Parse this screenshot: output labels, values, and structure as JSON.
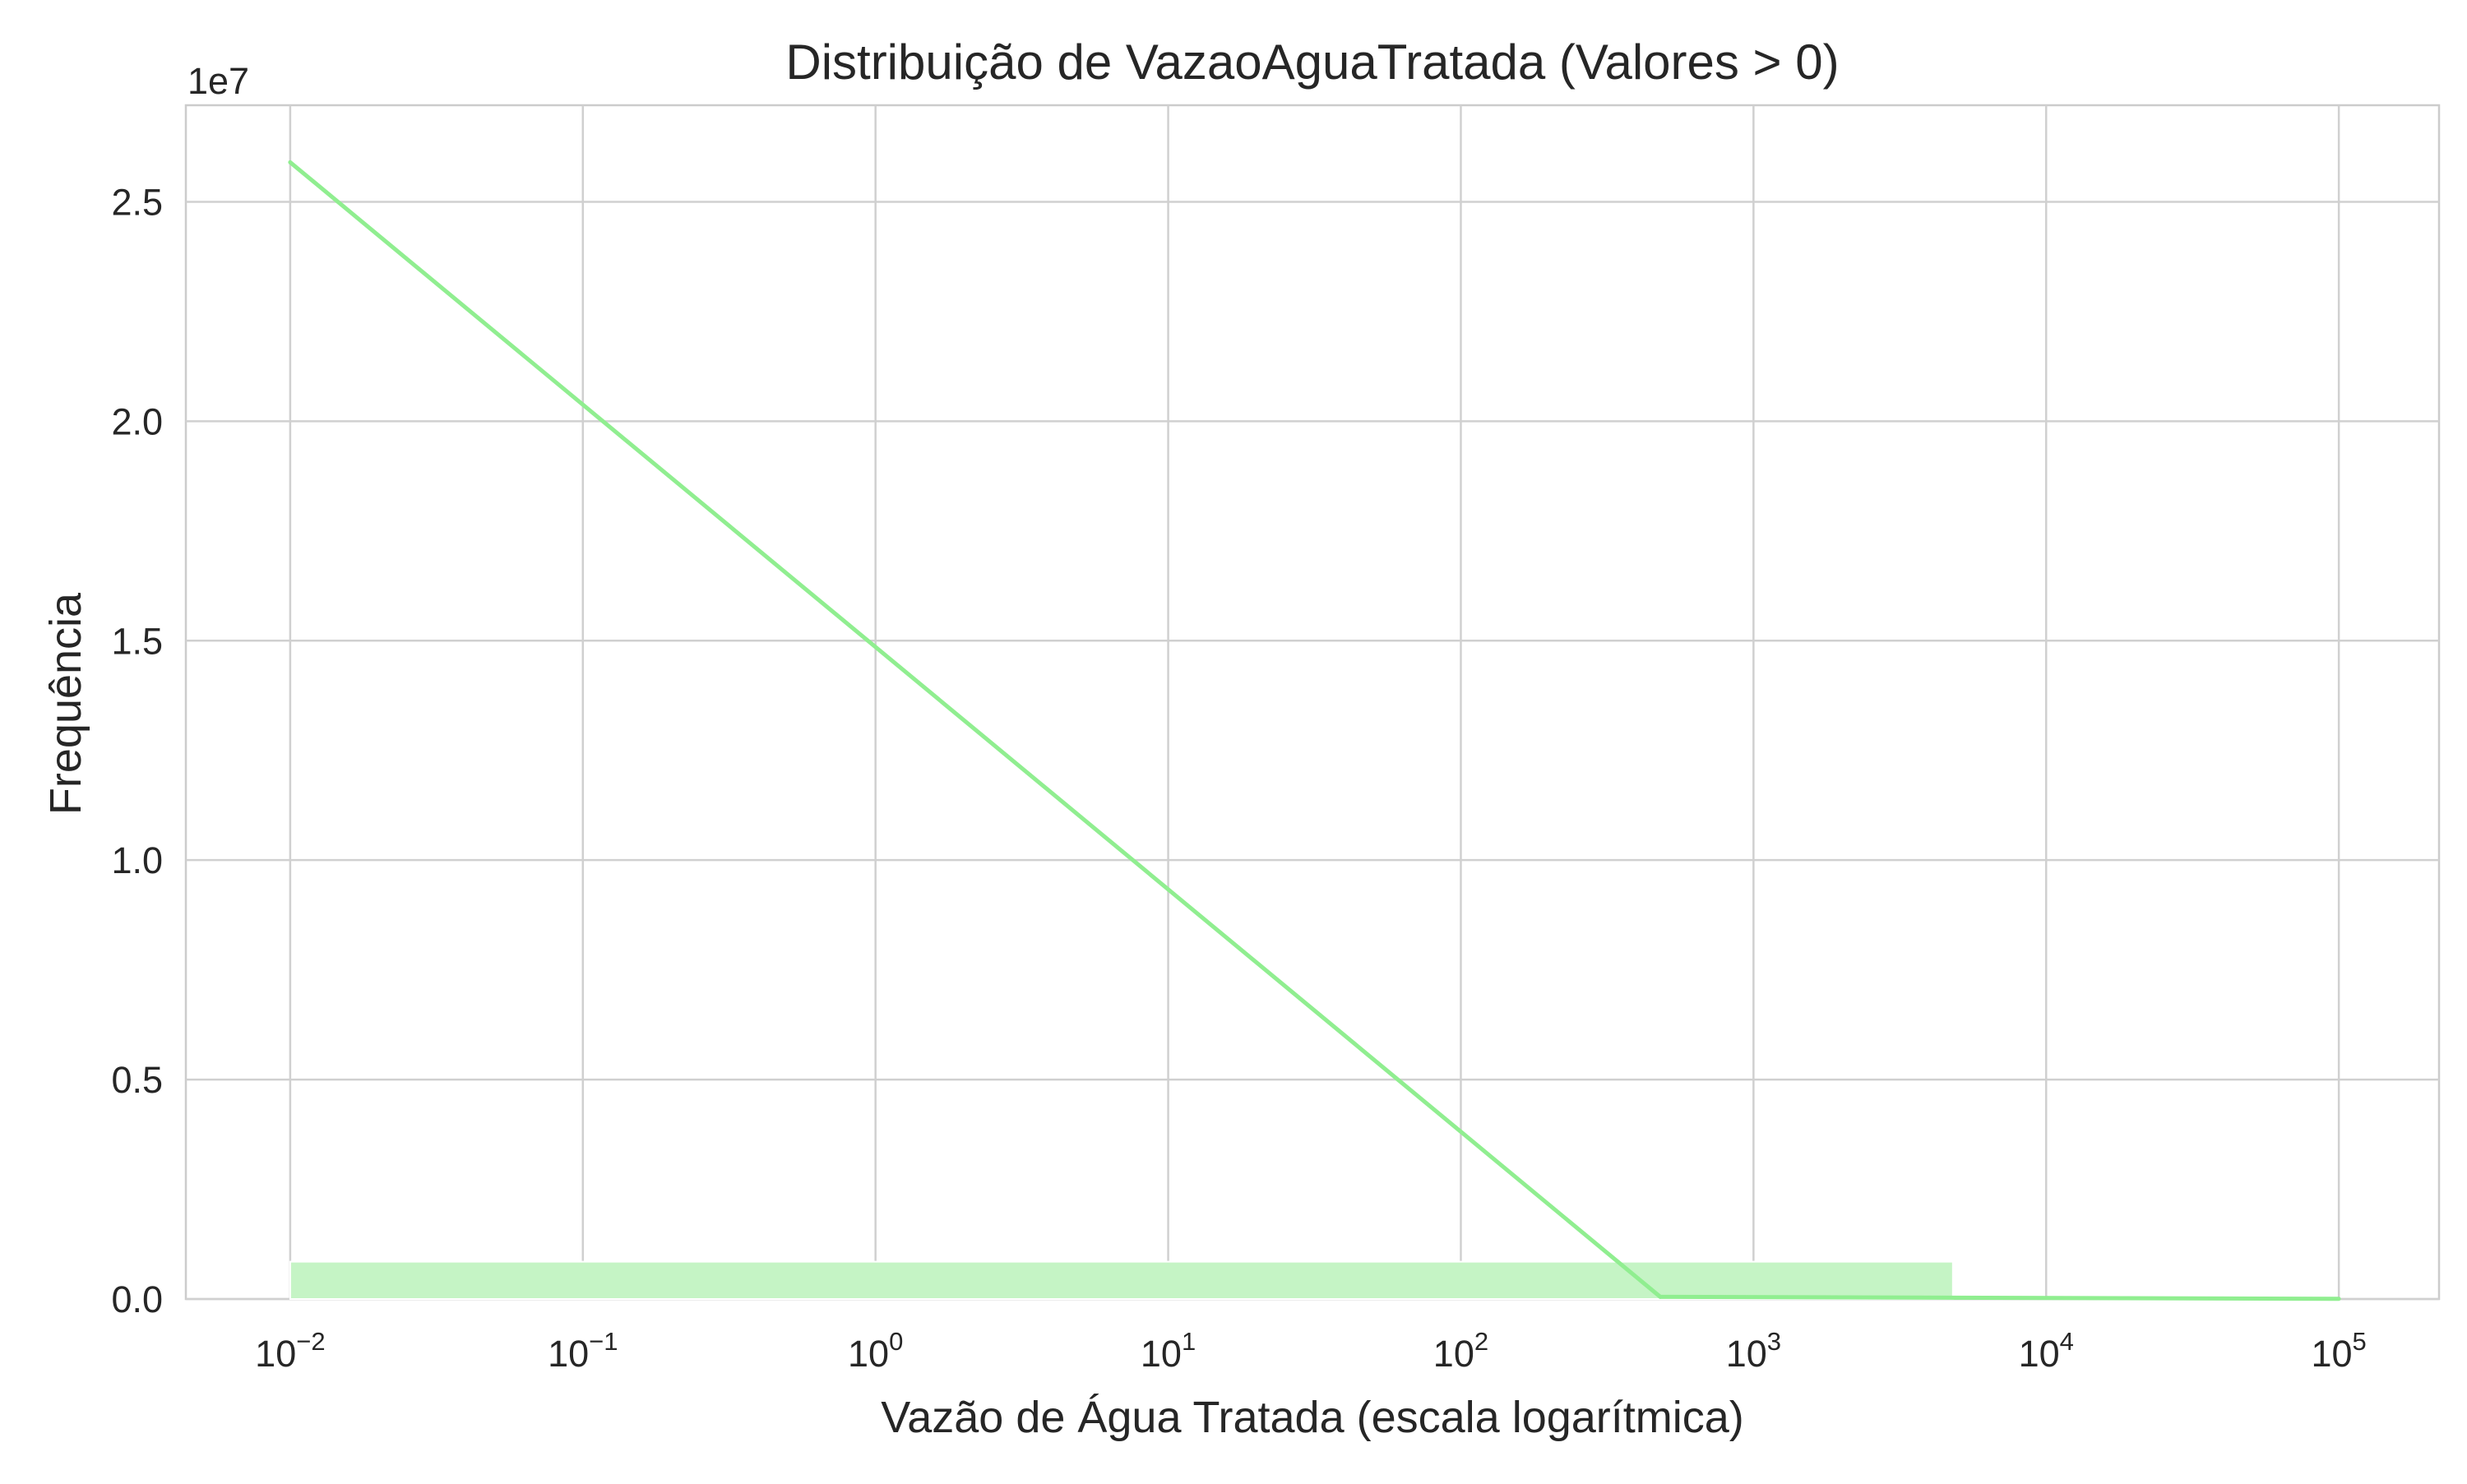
{
  "chart_data": {
    "type": "area",
    "title": "Distribuição de VazaoAguaTratada (Valores > 0)",
    "xlabel": "Vazão de Água Tratada (escala logarítmica)",
    "ylabel": "Frequência",
    "x_scale": "log",
    "xlim": [
      0.0044,
      220000
    ],
    "ylim": [
      0,
      27200000
    ],
    "y_offset_label": "1e7",
    "x_ticks": [
      {
        "value": 0.01,
        "base": "10",
        "exp": "−2"
      },
      {
        "value": 0.1,
        "base": "10",
        "exp": "−1"
      },
      {
        "value": 1,
        "base": "10",
        "exp": "0"
      },
      {
        "value": 10,
        "base": "10",
        "exp": "1"
      },
      {
        "value": 100,
        "base": "10",
        "exp": "2"
      },
      {
        "value": 1000,
        "base": "10",
        "exp": "3"
      },
      {
        "value": 10000,
        "base": "10",
        "exp": "4"
      },
      {
        "value": 100000,
        "base": "10",
        "exp": "5"
      }
    ],
    "y_ticks": [
      {
        "value": 0,
        "label": "0.0"
      },
      {
        "value": 5000000,
        "label": "0.5"
      },
      {
        "value": 10000000,
        "label": "1.0"
      },
      {
        "value": 15000000,
        "label": "1.5"
      },
      {
        "value": 20000000,
        "label": "2.0"
      },
      {
        "value": 25000000,
        "label": "2.5"
      }
    ],
    "histogram_bins": [
      {
        "x_start": 0.01,
        "x_end": 4800,
        "count": 850000
      }
    ],
    "kde_line": {
      "x": [
        0.01,
        480,
        100000
      ],
      "y": [
        25900000,
        50000,
        5000
      ]
    },
    "grid": true,
    "colors": {
      "bar_fill": "#c5f4c5",
      "line": "#90ee90",
      "grid": "#d0d0d0",
      "frame": "#cccccc"
    }
  }
}
